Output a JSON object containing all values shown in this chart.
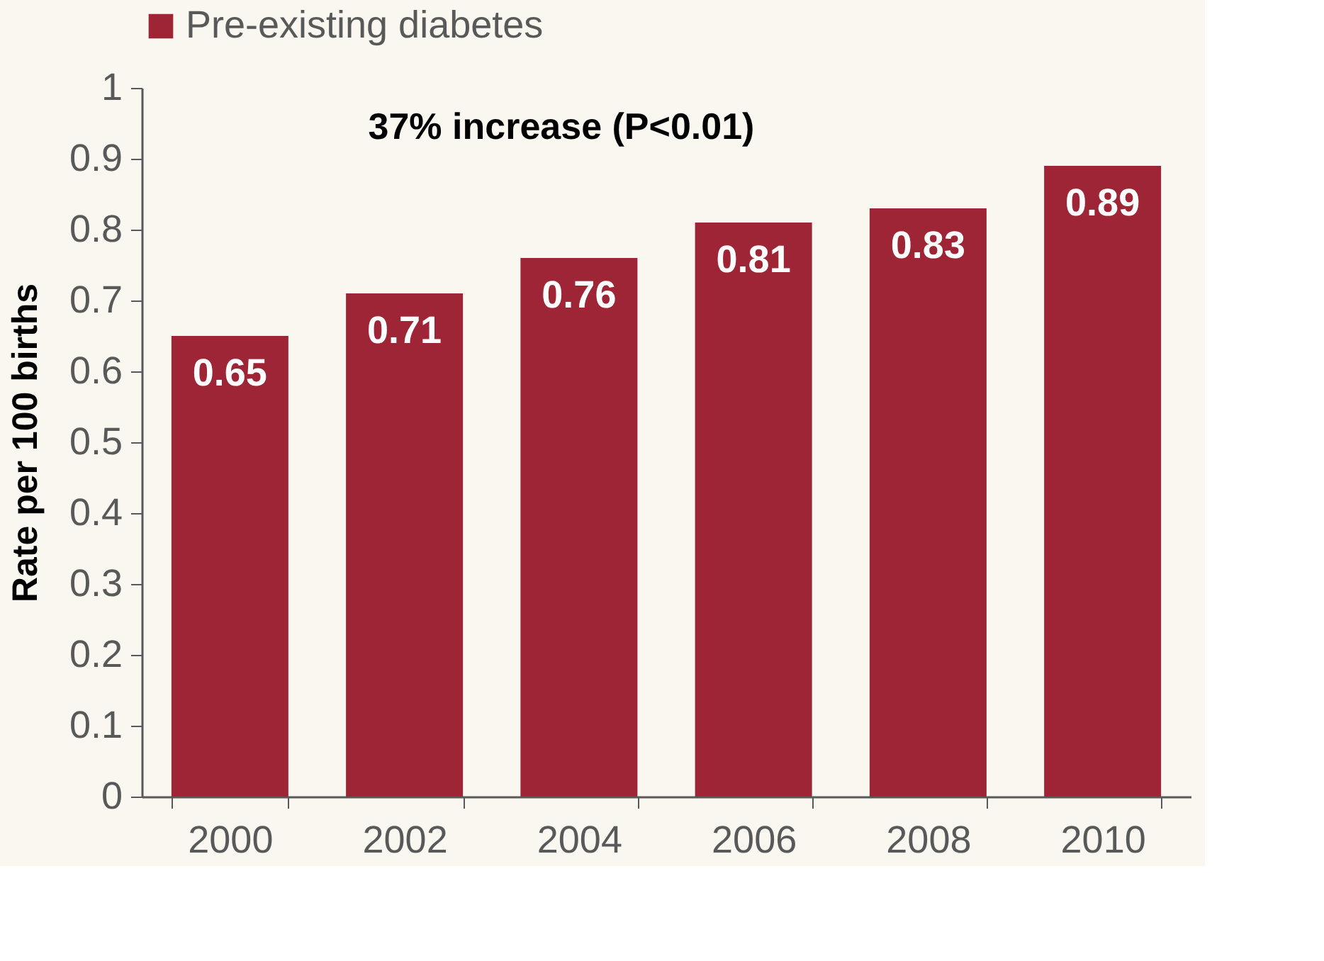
{
  "chart_data": {
    "type": "bar",
    "categories": [
      "2000",
      "2002",
      "2004",
      "2006",
      "2008",
      "2010"
    ],
    "series": [
      {
        "name": "Pre-existing diabetes",
        "color": "#9e2536",
        "values": [
          0.65,
          0.71,
          0.76,
          0.81,
          0.83,
          0.89
        ]
      }
    ],
    "ylabel": "Rate per 100 births",
    "ylim": [
      0,
      1
    ],
    "yticks": [
      0,
      0.1,
      0.2,
      0.3,
      0.4,
      0.5,
      0.6,
      0.7,
      0.8,
      0.9,
      1
    ],
    "annotations": [
      "37% increase (P<0.01)"
    ],
    "data_labels": true,
    "legend": "top",
    "grid": false
  }
}
